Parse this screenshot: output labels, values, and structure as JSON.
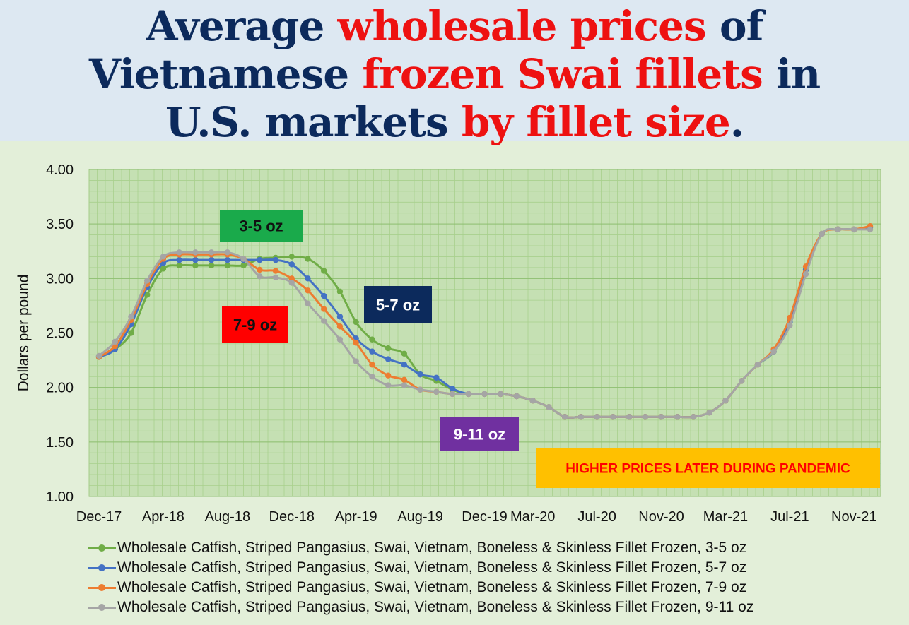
{
  "title": {
    "parts": [
      {
        "text": "Average ",
        "color": "navy"
      },
      {
        "text": "wholesale prices",
        "color": "red"
      },
      {
        "text": " of",
        "color": "navy"
      },
      {
        "text": "Vietnamese ",
        "color": "navy"
      },
      {
        "text": "frozen Swai fillets",
        "color": "red"
      },
      {
        "text": " in",
        "color": "navy"
      },
      {
        "text": "U.S. markets ",
        "color": "navy"
      },
      {
        "text": "by fillet size",
        "color": "red"
      },
      {
        "text": ".",
        "color": "navy"
      }
    ]
  },
  "colors": {
    "navy": "#0c2a5c",
    "red": "#ee1111",
    "plot_bg": "#c5e0b3",
    "grid": "#a8d08d"
  },
  "chart_data": {
    "type": "line",
    "ylabel": "Dollars per pound",
    "xlabel": "",
    "ylim": [
      1.0,
      4.0
    ],
    "yticks": [
      "1.00",
      "1.50",
      "2.00",
      "2.50",
      "3.00",
      "3.50",
      "4.00"
    ],
    "x_tick_labels": [
      "Dec-17",
      "Apr-18",
      "Aug-18",
      "Dec-18",
      "Apr-19",
      "Aug-19",
      "Dec-19",
      "Mar-20",
      "Jul-20",
      "Nov-20",
      "Mar-21",
      "Jul-21",
      "Nov-21"
    ],
    "x": [
      "Dec-17",
      "Jan-18",
      "Feb-18",
      "Mar-18",
      "Apr-18",
      "May-18",
      "Jun-18",
      "Jul-18",
      "Aug-18",
      "Sep-18",
      "Oct-18",
      "Nov-18",
      "Dec-18",
      "Jan-19",
      "Feb-19",
      "Mar-19",
      "Apr-19",
      "May-19",
      "Jun-19",
      "Jul-19",
      "Aug-19",
      "Sep-19",
      "Oct-19",
      "Nov-19",
      "Dec-19",
      "Jan-20",
      "Feb-20",
      "Mar-20",
      "Apr-20",
      "May-20",
      "Jun-20",
      "Jul-20",
      "Aug-20",
      "Sep-20",
      "Oct-20",
      "Nov-20",
      "Dec-20",
      "Jan-21",
      "Feb-21",
      "Mar-21",
      "Apr-21",
      "May-21",
      "Jun-21",
      "Jul-21",
      "Aug-21",
      "Sep-21",
      "Oct-21",
      "Nov-21",
      "Dec-21"
    ],
    "grid": true,
    "legend_position": "bottom",
    "series": [
      {
        "name": "Wholesale Catfish, Striped Pangasius, Swai, Vietnam, Boneless & Skinless Fillet Frozen, 3-5 oz",
        "color": "#70ad47",
        "values": [
          2.28,
          2.35,
          2.5,
          2.85,
          3.09,
          3.12,
          3.12,
          3.12,
          3.12,
          3.12,
          3.18,
          3.19,
          3.2,
          3.18,
          3.07,
          2.88,
          2.6,
          2.44,
          2.36,
          2.31,
          2.12,
          2.06,
          1.98,
          1.94,
          1.94,
          1.94,
          1.92,
          1.88,
          1.82,
          1.73,
          1.73,
          1.73,
          1.73,
          1.73,
          1.73,
          1.73,
          1.73,
          1.73,
          1.77,
          1.88,
          2.06,
          2.21,
          2.33,
          2.62,
          3.08,
          3.41,
          3.45,
          3.45,
          3.47
        ]
      },
      {
        "name": "Wholesale Catfish, Striped Pangasius, Swai, Vietnam, Boneless & Skinless Fillet Frozen, 5-7 oz",
        "color": "#4472c4",
        "values": [
          2.28,
          2.35,
          2.58,
          2.92,
          3.14,
          3.17,
          3.17,
          3.17,
          3.17,
          3.17,
          3.17,
          3.17,
          3.13,
          3.0,
          2.84,
          2.65,
          2.45,
          2.33,
          2.26,
          2.21,
          2.12,
          2.09,
          1.99,
          1.94,
          1.94,
          1.94,
          1.92,
          1.88,
          1.82,
          1.73,
          1.73,
          1.73,
          1.73,
          1.73,
          1.73,
          1.73,
          1.73,
          1.73,
          1.77,
          1.88,
          2.06,
          2.21,
          2.33,
          2.6,
          3.08,
          3.41,
          3.45,
          3.45,
          3.47
        ]
      },
      {
        "name": "Wholesale Catfish, Striped Pangasius, Swai, Vietnam, Boneless & Skinless Fillet Frozen, 7-9 oz",
        "color": "#ed7d31",
        "values": [
          2.28,
          2.38,
          2.62,
          2.95,
          3.18,
          3.22,
          3.22,
          3.22,
          3.22,
          3.18,
          3.08,
          3.07,
          3.0,
          2.89,
          2.72,
          2.56,
          2.41,
          2.21,
          2.11,
          2.07,
          1.98,
          1.96,
          1.94,
          1.94,
          1.94,
          1.94,
          1.92,
          1.88,
          1.82,
          1.73,
          1.73,
          1.73,
          1.73,
          1.73,
          1.73,
          1.73,
          1.73,
          1.73,
          1.77,
          1.88,
          2.06,
          2.21,
          2.35,
          2.64,
          3.11,
          3.41,
          3.45,
          3.45,
          3.48
        ]
      },
      {
        "name": "Wholesale Catfish, Striped Pangasius, Swai, Vietnam, Boneless & Skinless Fillet Frozen, 9-11 oz",
        "color": "#a5a5a5",
        "values": [
          2.29,
          2.42,
          2.65,
          2.98,
          3.2,
          3.24,
          3.24,
          3.24,
          3.24,
          3.18,
          3.02,
          3.01,
          2.96,
          2.77,
          2.61,
          2.44,
          2.24,
          2.1,
          2.02,
          2.02,
          1.98,
          1.96,
          1.94,
          1.94,
          1.94,
          1.94,
          1.92,
          1.88,
          1.82,
          1.73,
          1.73,
          1.73,
          1.73,
          1.73,
          1.73,
          1.73,
          1.73,
          1.73,
          1.77,
          1.88,
          2.06,
          2.21,
          2.33,
          2.57,
          3.04,
          3.41,
          3.45,
          3.45,
          3.45
        ]
      }
    ],
    "annotations": [
      {
        "text": "3-5 oz",
        "bg": "#1aaa4b",
        "color": "#111111"
      },
      {
        "text": "5-7 oz",
        "bg": "#0c2a5c",
        "color": "#ffffff"
      },
      {
        "text": "7-9 oz",
        "bg": "#ff0000",
        "color": "#111111"
      },
      {
        "text": "9-11 oz",
        "bg": "#7030a0",
        "color": "#ffffff"
      },
      {
        "text": "HIGHER PRICES LATER DURING PANDEMIC",
        "bg": "#ffc000",
        "color": "#ff0000"
      }
    ]
  }
}
